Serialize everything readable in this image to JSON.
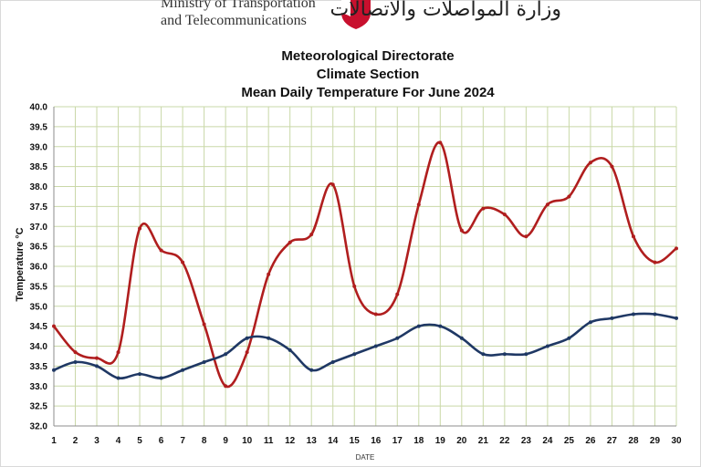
{
  "header": {
    "ministry_line1": "Ministry of Transportation",
    "ministry_line2": "and Telecommunications",
    "arabic_name": "وزارة المواصلات والاتصالات",
    "emblem_icon": "bahrain-emblem-icon"
  },
  "chart_data": {
    "type": "line",
    "title": [
      "Meteorological Directorate",
      "Climate Section",
      "Mean Daily  Temperature For June 2024"
    ],
    "xlabel": "DATE",
    "ylabel": "Temperature °C",
    "x": [
      1,
      2,
      3,
      4,
      5,
      6,
      7,
      8,
      9,
      10,
      11,
      12,
      13,
      14,
      15,
      16,
      17,
      18,
      19,
      20,
      21,
      22,
      23,
      24,
      25,
      26,
      27,
      28,
      29,
      30
    ],
    "xlim": [
      1,
      30
    ],
    "ylim": [
      32.0,
      40.0
    ],
    "yticks": [
      "32.0",
      "32.5",
      "33.0",
      "33.5",
      "34.0",
      "34.5",
      "35.0",
      "35.5",
      "36.0",
      "36.5",
      "37.0",
      "37.5",
      "38.0",
      "38.5",
      "39.0",
      "39.5",
      "40.0"
    ],
    "grid": true,
    "legend": "none",
    "series": [
      {
        "color": "#b01e1e",
        "values": [
          34.5,
          33.85,
          33.7,
          33.85,
          36.95,
          36.4,
          36.1,
          34.55,
          33.0,
          33.85,
          35.8,
          36.6,
          36.8,
          38.05,
          35.5,
          34.8,
          35.3,
          37.55,
          39.1,
          36.9,
          37.45,
          37.3,
          36.75,
          37.55,
          37.75,
          38.6,
          38.5,
          36.75,
          36.1,
          36.45
        ]
      },
      {
        "color": "#1f3864",
        "values": [
          33.4,
          33.6,
          33.5,
          33.2,
          33.3,
          33.2,
          33.4,
          33.6,
          33.8,
          34.2,
          34.2,
          33.9,
          33.4,
          33.6,
          33.8,
          34.0,
          34.2,
          34.5,
          34.5,
          34.2,
          33.8,
          33.8,
          33.8,
          34.0,
          34.2,
          34.6,
          34.7,
          34.8,
          34.8,
          34.7
        ]
      }
    ]
  },
  "colors": {
    "grid": "#c9d8a8",
    "axis": "#8c8c8c"
  }
}
